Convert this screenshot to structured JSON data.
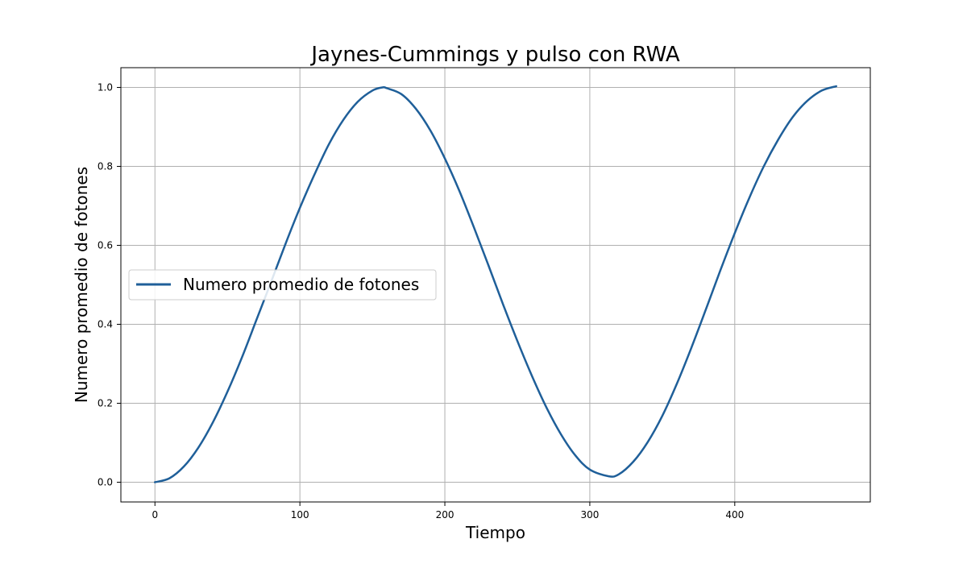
{
  "chart_data": {
    "type": "line",
    "title": "Jaynes-Cummings y pulso con RWA",
    "xlabel": "Tiempo",
    "ylabel": "Numero promedio de fotones",
    "xlim": [
      -23.5,
      493.5
    ],
    "ylim": [
      -0.05,
      1.05
    ],
    "xticks": [
      0,
      100,
      200,
      300,
      400
    ],
    "xtick_labels": [
      "0",
      "100",
      "200",
      "300",
      "400"
    ],
    "yticks": [
      0.0,
      0.2,
      0.4,
      0.6,
      0.8,
      1.0
    ],
    "ytick_labels": [
      "0.0",
      "0.2",
      "0.4",
      "0.6",
      "0.8",
      "1.0"
    ],
    "grid": true,
    "legend_position": "center-left",
    "series": [
      {
        "name": "Numero promedio de fotones",
        "color": "#1f5f99",
        "x": [
          0,
          10,
          20,
          30,
          40,
          50,
          60,
          70,
          80,
          90,
          100,
          110,
          120,
          130,
          140,
          150,
          157,
          160,
          170,
          180,
          190,
          200,
          210,
          220,
          230,
          240,
          250,
          260,
          270,
          280,
          290,
          300,
          313,
          320,
          330,
          340,
          350,
          360,
          370,
          380,
          390,
          400,
          410,
          420,
          430,
          440,
          450,
          460,
          470
        ],
        "y": [
          0.0,
          0.01,
          0.04,
          0.088,
          0.152,
          0.229,
          0.316,
          0.411,
          0.506,
          0.603,
          0.695,
          0.779,
          0.856,
          0.918,
          0.964,
          0.992,
          1.0,
          0.998,
          0.983,
          0.946,
          0.891,
          0.82,
          0.738,
          0.646,
          0.55,
          0.452,
          0.358,
          0.27,
          0.19,
          0.122,
          0.068,
          0.032,
          0.015,
          0.02,
          0.052,
          0.102,
          0.168,
          0.249,
          0.34,
          0.437,
          0.536,
          0.631,
          0.72,
          0.8,
          0.868,
          0.925,
          0.966,
          0.992,
          1.003
        ]
      }
    ]
  }
}
